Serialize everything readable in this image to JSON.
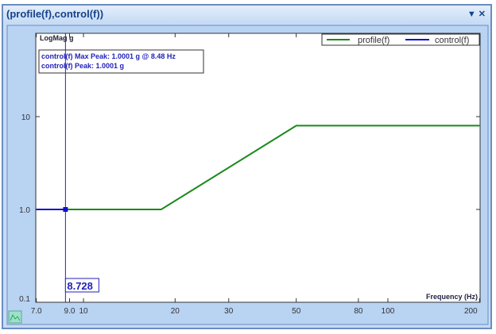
{
  "window": {
    "title": "(profile(f),control(f))",
    "menu_icon": "dropdown-arrow-icon",
    "close_icon": "close-icon"
  },
  "cursor": {
    "value": "8.728"
  },
  "annotation": [
    "control(f) Max Peak: 1.0001 g @ 8.48 Hz",
    "control(f) Peak: 1.0001 g"
  ],
  "chart_data": {
    "type": "line",
    "ylabel": "LogMag g",
    "xlabel": "Frequency (Hz)",
    "xscale": "log",
    "yscale": "log",
    "xlim": [
      7,
      200
    ],
    "ylim": [
      0.1,
      80
    ],
    "xticks": [
      "7.0",
      "9.0",
      "10",
      "20",
      "30",
      "50",
      "80",
      "100",
      "200"
    ],
    "xtick_values": [
      7,
      9,
      10,
      20,
      30,
      50,
      80,
      100,
      200
    ],
    "yticks": [
      "0.1",
      "1.0",
      "10"
    ],
    "ytick_values": [
      0.1,
      1,
      10
    ],
    "legend": "top-right",
    "series": [
      {
        "name": "profile(f)",
        "color": "#1a8a1a",
        "x": [
          8.728,
          18,
          50,
          200
        ],
        "y": [
          1,
          1,
          8,
          8
        ]
      },
      {
        "name": "control(f)",
        "color": "#1010d0",
        "x": [
          7,
          8.728
        ],
        "y": [
          1,
          1
        ]
      }
    ],
    "cursor_x": 8.728
  }
}
